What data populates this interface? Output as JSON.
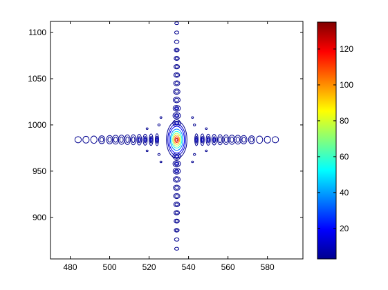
{
  "chart_data": {
    "type": "contour",
    "title": "",
    "xlabel": "",
    "ylabel": "",
    "xlim": [
      470,
      598
    ],
    "ylim": [
      855,
      1112
    ],
    "x_ticks": [
      480,
      500,
      520,
      540,
      560,
      580
    ],
    "y_ticks": [
      900,
      950,
      1000,
      1050,
      1100
    ],
    "grid": false,
    "peak": {
      "x": 534,
      "y": 984,
      "value": 135
    },
    "contour_levels": [
      5,
      12,
      20,
      35,
      55,
      75,
      95,
      115,
      128
    ],
    "sidelobes": {
      "horizontal_x": [
        484,
        488,
        492,
        496,
        500,
        503,
        506,
        509,
        512,
        515,
        518,
        521,
        524,
        544,
        547,
        550,
        553,
        556,
        559,
        562,
        565,
        568,
        572,
        576,
        580,
        584
      ],
      "vertical_y": [
        866,
        876,
        886,
        896,
        905,
        914,
        923,
        932,
        941,
        950,
        958,
        966,
        1002,
        1010,
        1018,
        1027,
        1036,
        1045,
        1054,
        1063,
        1072,
        1081,
        1090,
        1100,
        1110
      ]
    },
    "colorbar": {
      "colormap": "jet",
      "range": [
        3,
        135
      ],
      "ticks": [
        20,
        40,
        60,
        80,
        100,
        120
      ]
    }
  }
}
